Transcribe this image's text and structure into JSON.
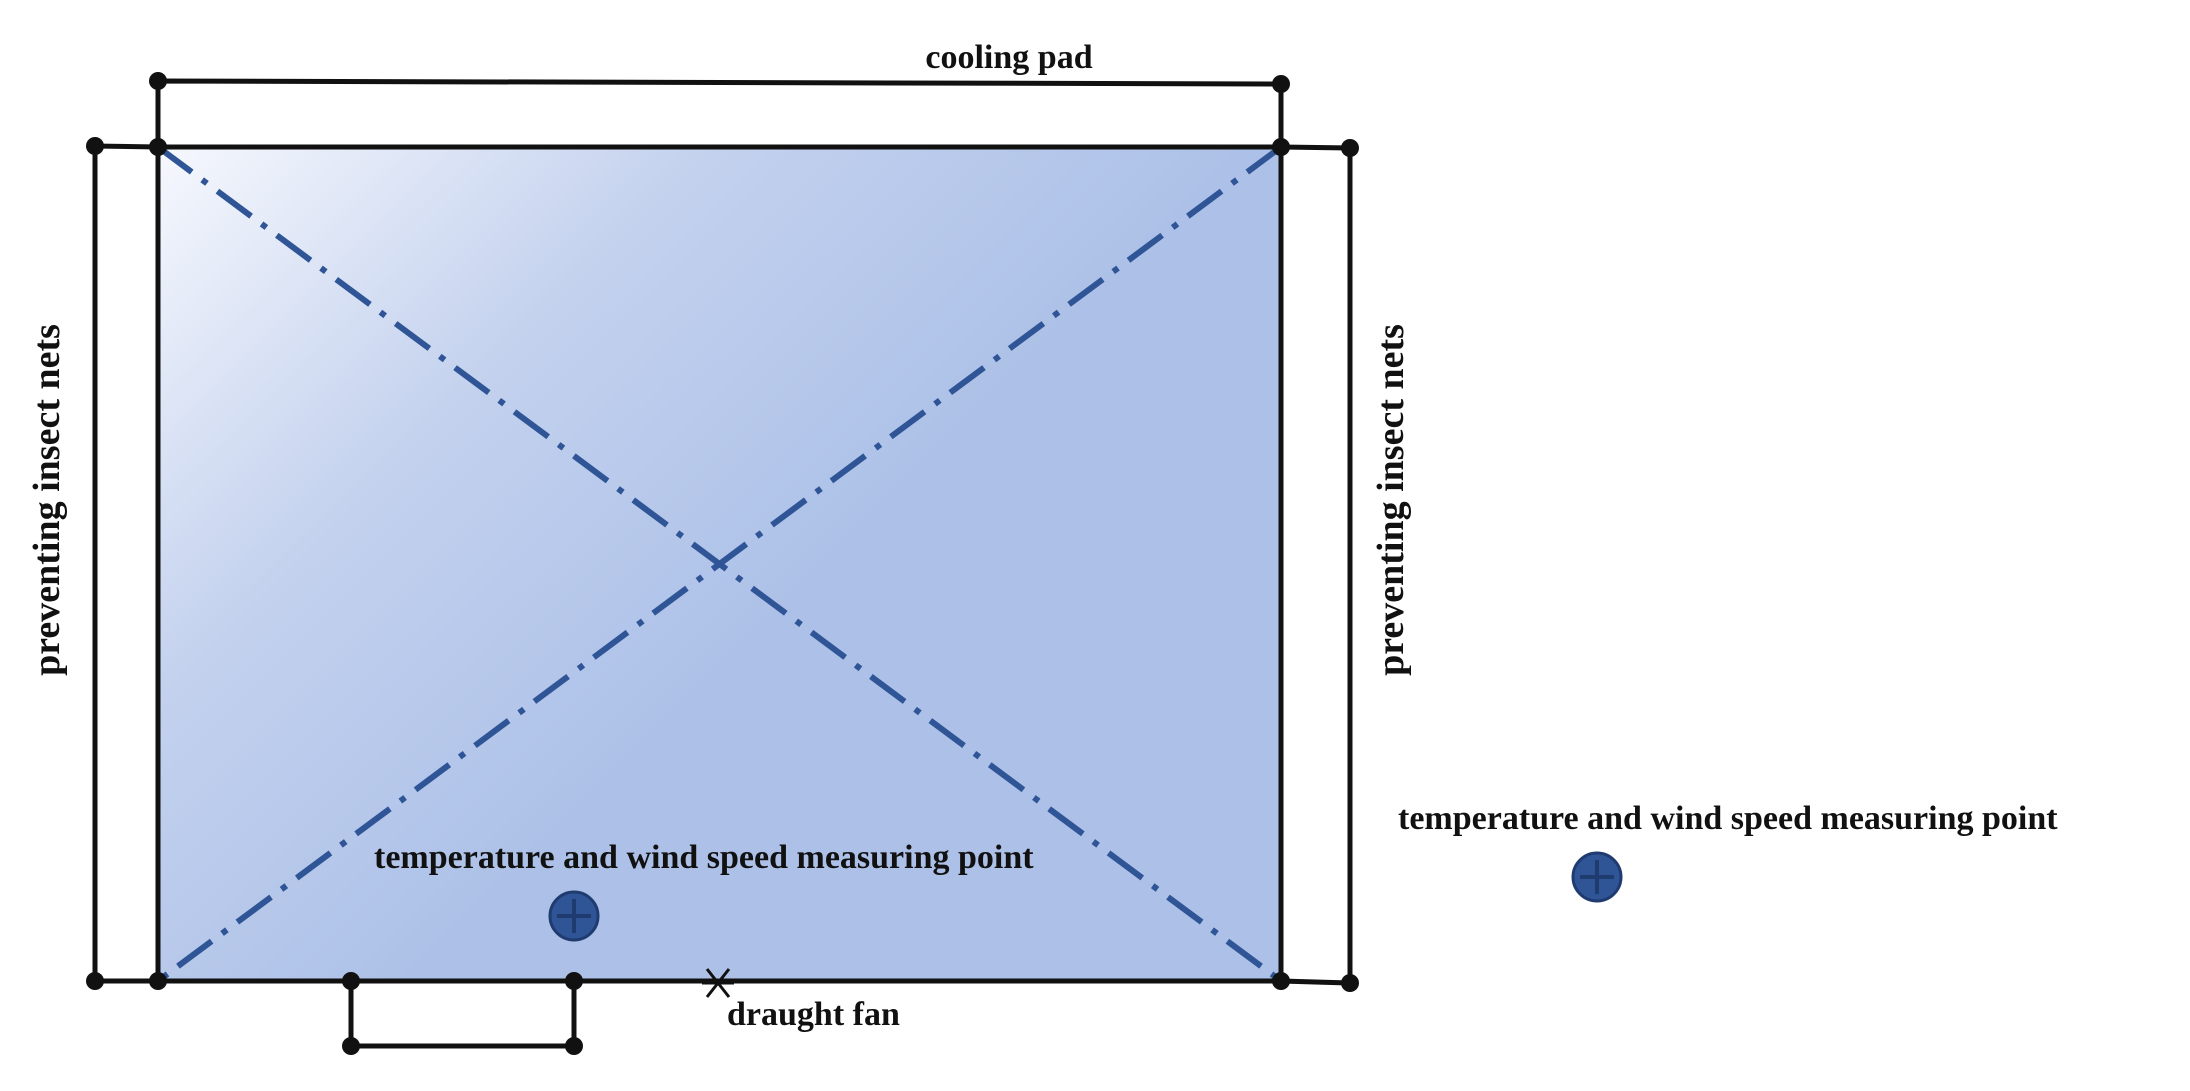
{
  "labels": {
    "cooling_pad": "cooling pad",
    "insect_nets_left": "preventing insect nets",
    "insect_nets_right": "preventing insect nets",
    "measuring_point_inner": "temperature and wind speed measuring point",
    "measuring_point_legend": "temperature and wind speed measuring point",
    "draught_fan": "draught fan"
  },
  "colors": {
    "fill_light": "#f6f8fd",
    "fill_mid": "#c3d1ee",
    "fill_main": "#adc1e8",
    "diagonal": "#2f5597",
    "marker_fill": "#2f5597",
    "marker_edge": "#1f3b70",
    "line": "#111111"
  }
}
